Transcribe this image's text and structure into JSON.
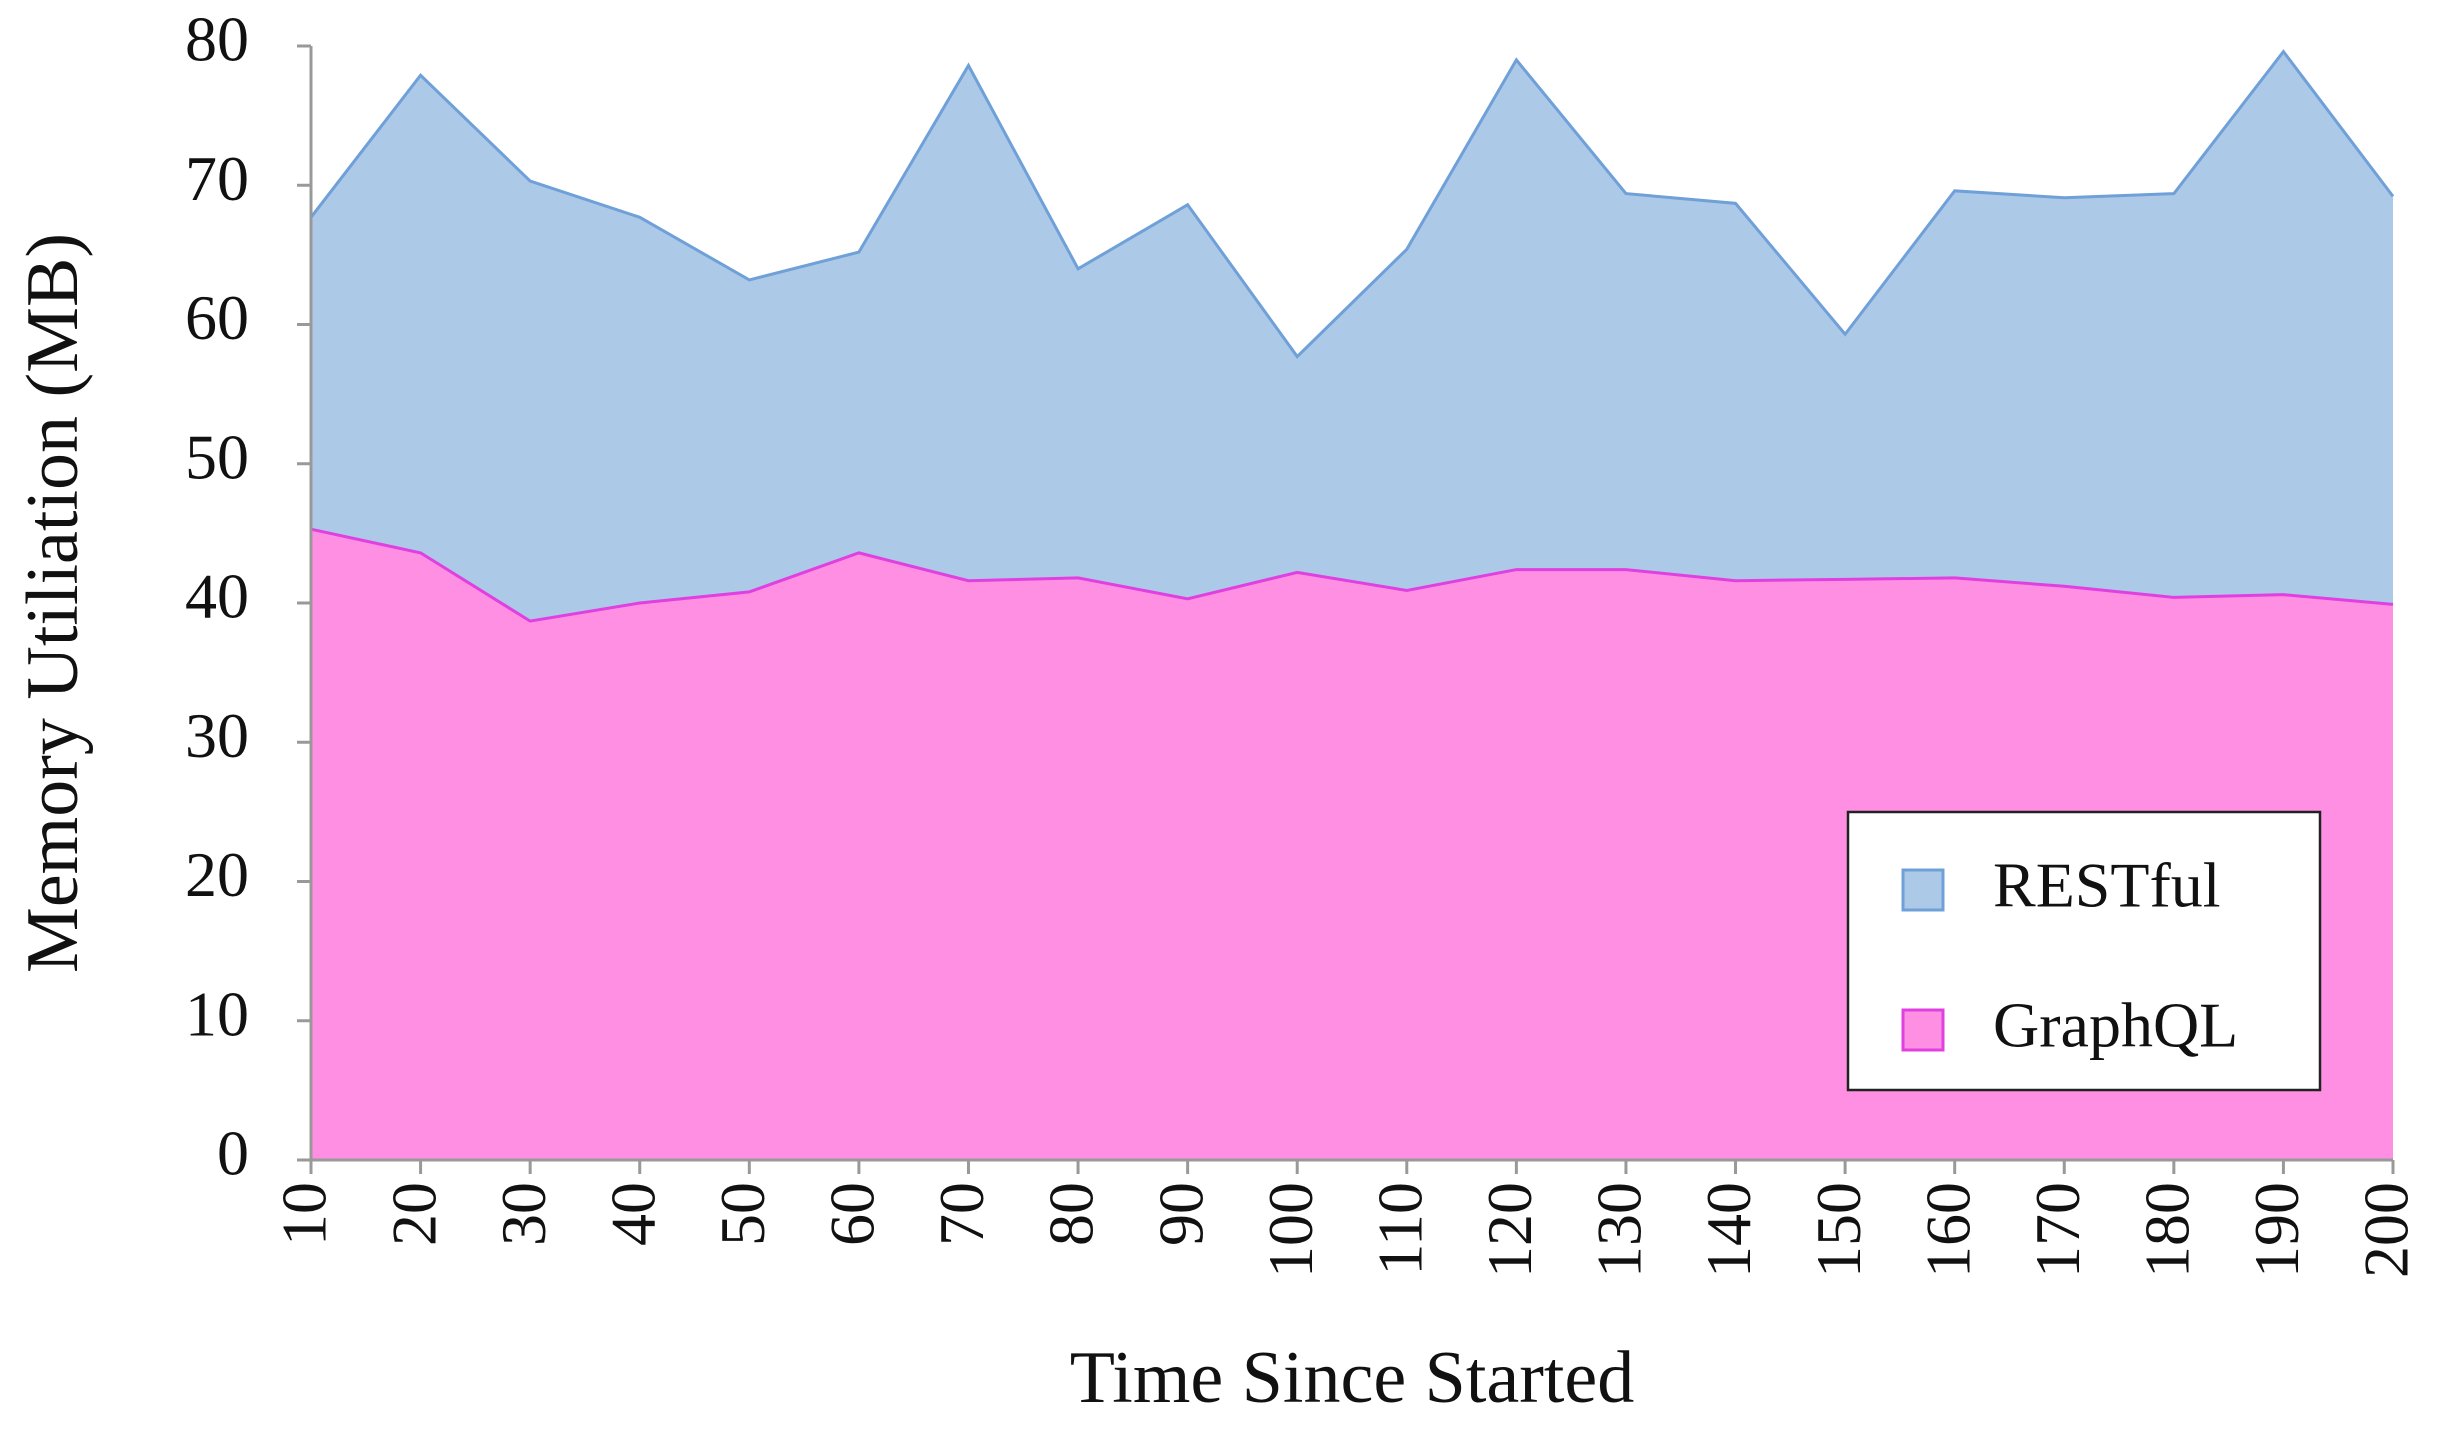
{
  "chart_data": {
    "type": "area",
    "x_label": "Time Since Started",
    "y_label": "Memory Utiliation (MB)",
    "x": [
      10,
      20,
      30,
      40,
      50,
      60,
      70,
      80,
      90,
      100,
      110,
      120,
      130,
      140,
      150,
      160,
      170,
      180,
      190,
      200
    ],
    "xlim": [
      10,
      200
    ],
    "xticks": [
      10,
      20,
      30,
      40,
      50,
      60,
      70,
      80,
      90,
      100,
      110,
      120,
      130,
      140,
      150,
      160,
      170,
      180,
      190,
      200
    ],
    "ylim": [
      0,
      80
    ],
    "yticks": [
      0,
      10,
      20,
      30,
      40,
      50,
      60,
      70,
      80
    ],
    "grid": false,
    "legend": "lower right",
    "series": [
      {
        "name": "RESTful",
        "color": "#adc9e8",
        "edge": "#6fa0d8",
        "values": [
          67.7,
          77.9,
          70.3,
          67.7,
          63.2,
          65.2,
          78.6,
          64.0,
          68.6,
          57.7,
          65.4,
          79.0,
          69.4,
          68.7,
          59.3,
          69.6,
          69.1,
          69.4,
          79.6,
          69.2
        ]
      },
      {
        "name": "GraphQL",
        "color": "#ff8fe2",
        "edge": "#e040e0",
        "values": [
          45.3,
          43.6,
          38.7,
          40.0,
          40.8,
          43.6,
          41.6,
          41.8,
          40.3,
          42.2,
          40.9,
          42.4,
          42.4,
          41.6,
          41.7,
          41.8,
          41.2,
          40.4,
          40.6,
          39.9
        ]
      }
    ]
  }
}
